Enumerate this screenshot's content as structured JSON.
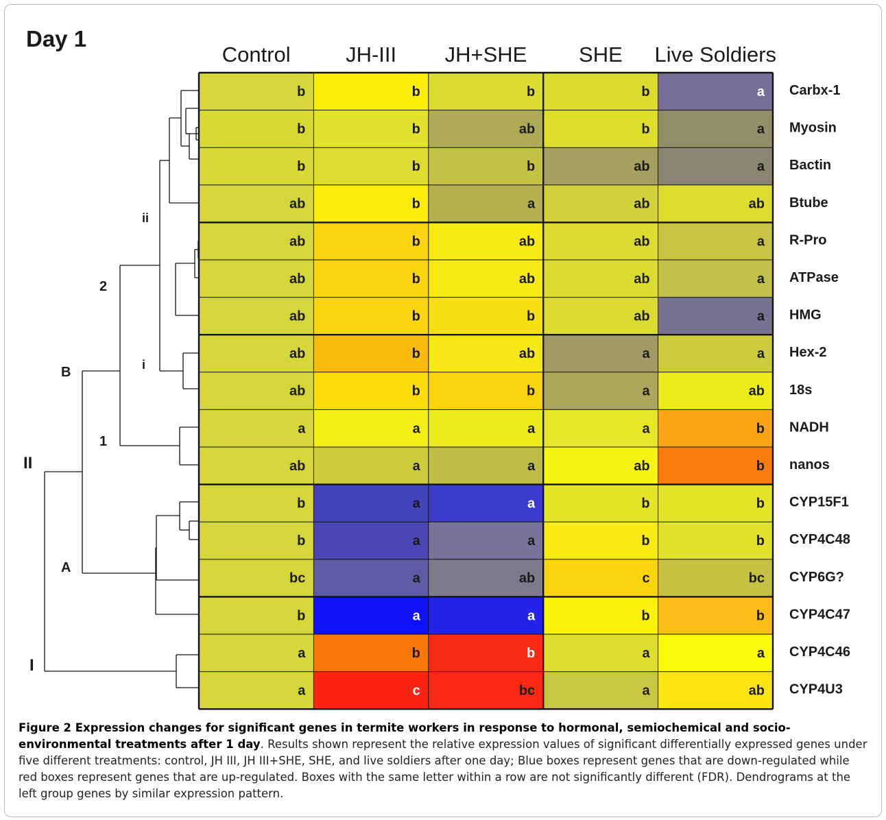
{
  "chart_data": {
    "type": "heatmap",
    "title": "Day 1",
    "columns": [
      "Control",
      "JH-III",
      "JH+SHE",
      "SHE",
      "Live Soldiers"
    ],
    "rows": [
      "Carbx-1",
      "Myosin",
      "Bactin",
      "Btube",
      "R-Pro",
      "ATPase",
      "HMG",
      "Hex-2",
      "18s",
      "NADH",
      "nanos",
      "CYP15F1",
      "CYP4C48",
      "CYP6G?",
      "CYP4C47",
      "CYP4C46",
      "CYP4U3"
    ],
    "letters": [
      [
        "b",
        "b",
        "b",
        "b",
        "a"
      ],
      [
        "b",
        "b",
        "ab",
        "b",
        "a"
      ],
      [
        "b",
        "b",
        "b",
        "ab",
        "a"
      ],
      [
        "ab",
        "b",
        "a",
        "ab",
        "ab"
      ],
      [
        "ab",
        "b",
        "ab",
        "ab",
        "a"
      ],
      [
        "ab",
        "b",
        "ab",
        "ab",
        "a"
      ],
      [
        "ab",
        "b",
        "b",
        "ab",
        "a"
      ],
      [
        "ab",
        "b",
        "ab",
        "a",
        "a"
      ],
      [
        "ab",
        "b",
        "b",
        "a",
        "ab"
      ],
      [
        "a",
        "a",
        "a",
        "a",
        "b"
      ],
      [
        "ab",
        "a",
        "a",
        "ab",
        "b"
      ],
      [
        "b",
        "a",
        "a",
        "b",
        "b"
      ],
      [
        "b",
        "a",
        "a",
        "b",
        "b"
      ],
      [
        "bc",
        "a",
        "ab",
        "c",
        "bc"
      ],
      [
        "b",
        "a",
        "a",
        "b",
        "b"
      ],
      [
        "a",
        "b",
        "b",
        "a",
        "a"
      ],
      [
        "a",
        "c",
        "bc",
        "a",
        "ab"
      ]
    ],
    "cell_colors": [
      [
        "#d4d63a",
        "#fbef0a",
        "#dcdc30",
        "#dcdc2e",
        "#747098"
      ],
      [
        "#d6d834",
        "#e2e22c",
        "#aeaa56",
        "#dede2c",
        "#928e6a"
      ],
      [
        "#d6d836",
        "#dedc30",
        "#c4c244",
        "#a4a060",
        "#8a8472"
      ],
      [
        "#d4d63a",
        "#fced0a",
        "#b4b050",
        "#d2d23a",
        "#dedc2c"
      ],
      [
        "#d4d63a",
        "#fbd30e",
        "#f5ea12",
        "#dcdc30",
        "#c6c442"
      ],
      [
        "#d4d63a",
        "#fad40e",
        "#f5ea12",
        "#dcdc30",
        "#c2c046"
      ],
      [
        "#d4d63a",
        "#fad40e",
        "#f6e010",
        "#dcdc30",
        "#767292"
      ],
      [
        "#d4d63a",
        "#fbbb0c",
        "#f5e814",
        "#a09a64",
        "#cccc3c"
      ],
      [
        "#d4d63a",
        "#fbdd0e",
        "#fbd40e",
        "#aaa65a",
        "#ecec1c"
      ],
      [
        "#d4d63a",
        "#f4f014",
        "#ecec1c",
        "#e6e626",
        "#fba514"
      ],
      [
        "#d4d63a",
        "#cccc3c",
        "#bebc46",
        "#f6f212",
        "#fb7b0c"
      ],
      [
        "#d4d63a",
        "#4442bc",
        "#3a3acc",
        "#e4e428",
        "#e4e428"
      ],
      [
        "#d4d63a",
        "#4a48b6",
        "#78749a",
        "#f8ea12",
        "#e2e22a"
      ],
      [
        "#d4d63a",
        "#5e5ca6",
        "#7e7a8c",
        "#fbd40e",
        "#c4c240"
      ],
      [
        "#d4d63a",
        "#1212f8",
        "#2424e6",
        "#fbf20a",
        "#fbbe18"
      ],
      [
        "#d4d63a",
        "#fb7608",
        "#fb2a14",
        "#dede2e",
        "#fbf90a"
      ],
      [
        "#d4d63a",
        "#fb2414",
        "#fb2814",
        "#c8c840",
        "#fbe412"
      ]
    ],
    "white_letters": [
      [
        0,
        4
      ],
      [
        11,
        2
      ],
      [
        14,
        1
      ],
      [
        14,
        2
      ],
      [
        15,
        2
      ],
      [
        16,
        1
      ]
    ],
    "dendrogram_labels": [
      "II",
      "I",
      "B",
      "A",
      "2",
      "1",
      "ii",
      "i"
    ],
    "legend": "none",
    "grid": "cell borders"
  },
  "caption": {
    "bold": "Figure 2 Expression changes for significant genes in termite workers in response to hormonal, semiochemical and socio-environmental treatments after 1 day",
    "text": ". Results shown represent the relative expression values of significant differentially expressed genes under five different treatments: control, JH III, JH III+SHE, SHE, and live soldiers after one day; Blue boxes represent genes that are down-regulated while red boxes represent genes that are up-regulated. Boxes with the same letter within a row are not significantly different (FDR). Dendrograms at the left group genes by similar expression pattern."
  }
}
